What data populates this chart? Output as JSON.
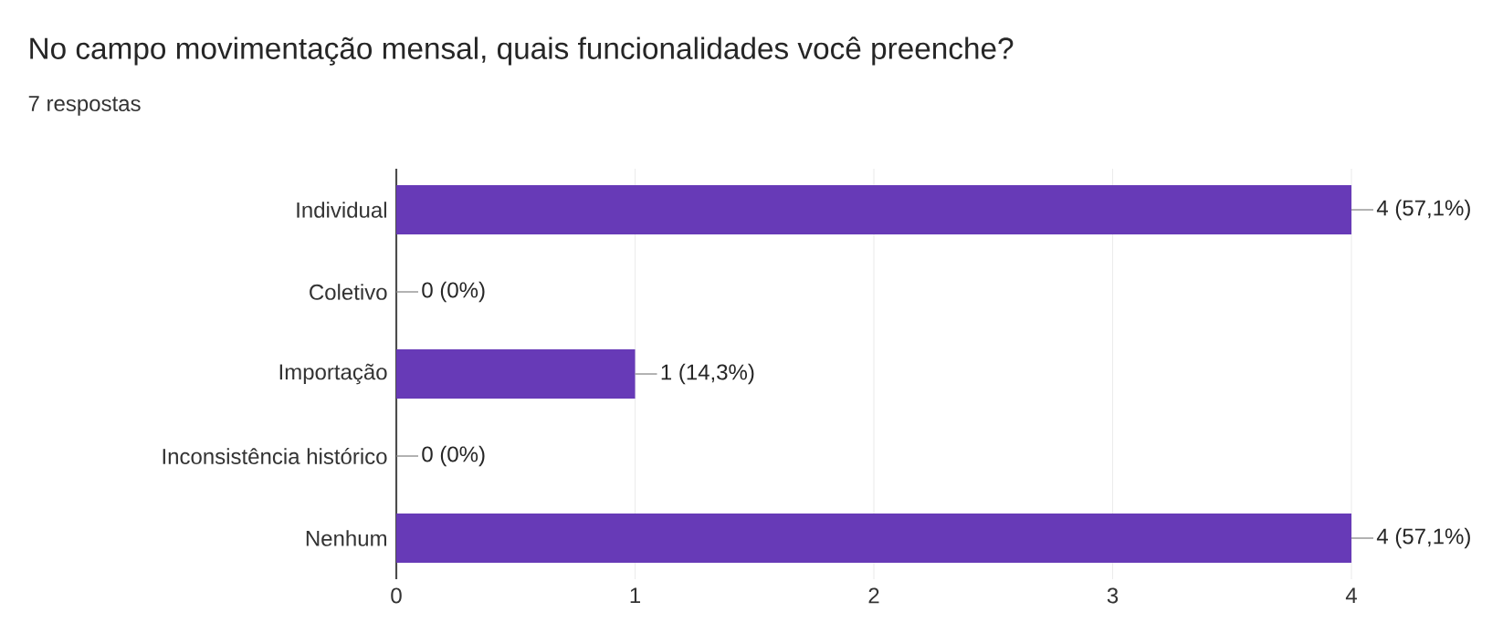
{
  "chart_data": {
    "type": "bar",
    "orientation": "horizontal",
    "title": "No campo movimentação mensal, quais funcionalidades você preenche?",
    "subtitle": "7 respostas",
    "categories": [
      "Individual",
      "Coletivo",
      "Importação",
      "Inconsistência histórico",
      "Nenhum"
    ],
    "values": [
      4,
      0,
      1,
      0,
      4
    ],
    "value_labels": [
      "4 (57,1%)",
      "0 (0%)",
      "1 (14,3%)",
      "0 (0%)",
      "4 (57,1%)"
    ],
    "color": "#673ab7",
    "xlim": [
      0,
      4
    ],
    "xticks": [
      0,
      1,
      2,
      3,
      4
    ],
    "grid": "x"
  }
}
